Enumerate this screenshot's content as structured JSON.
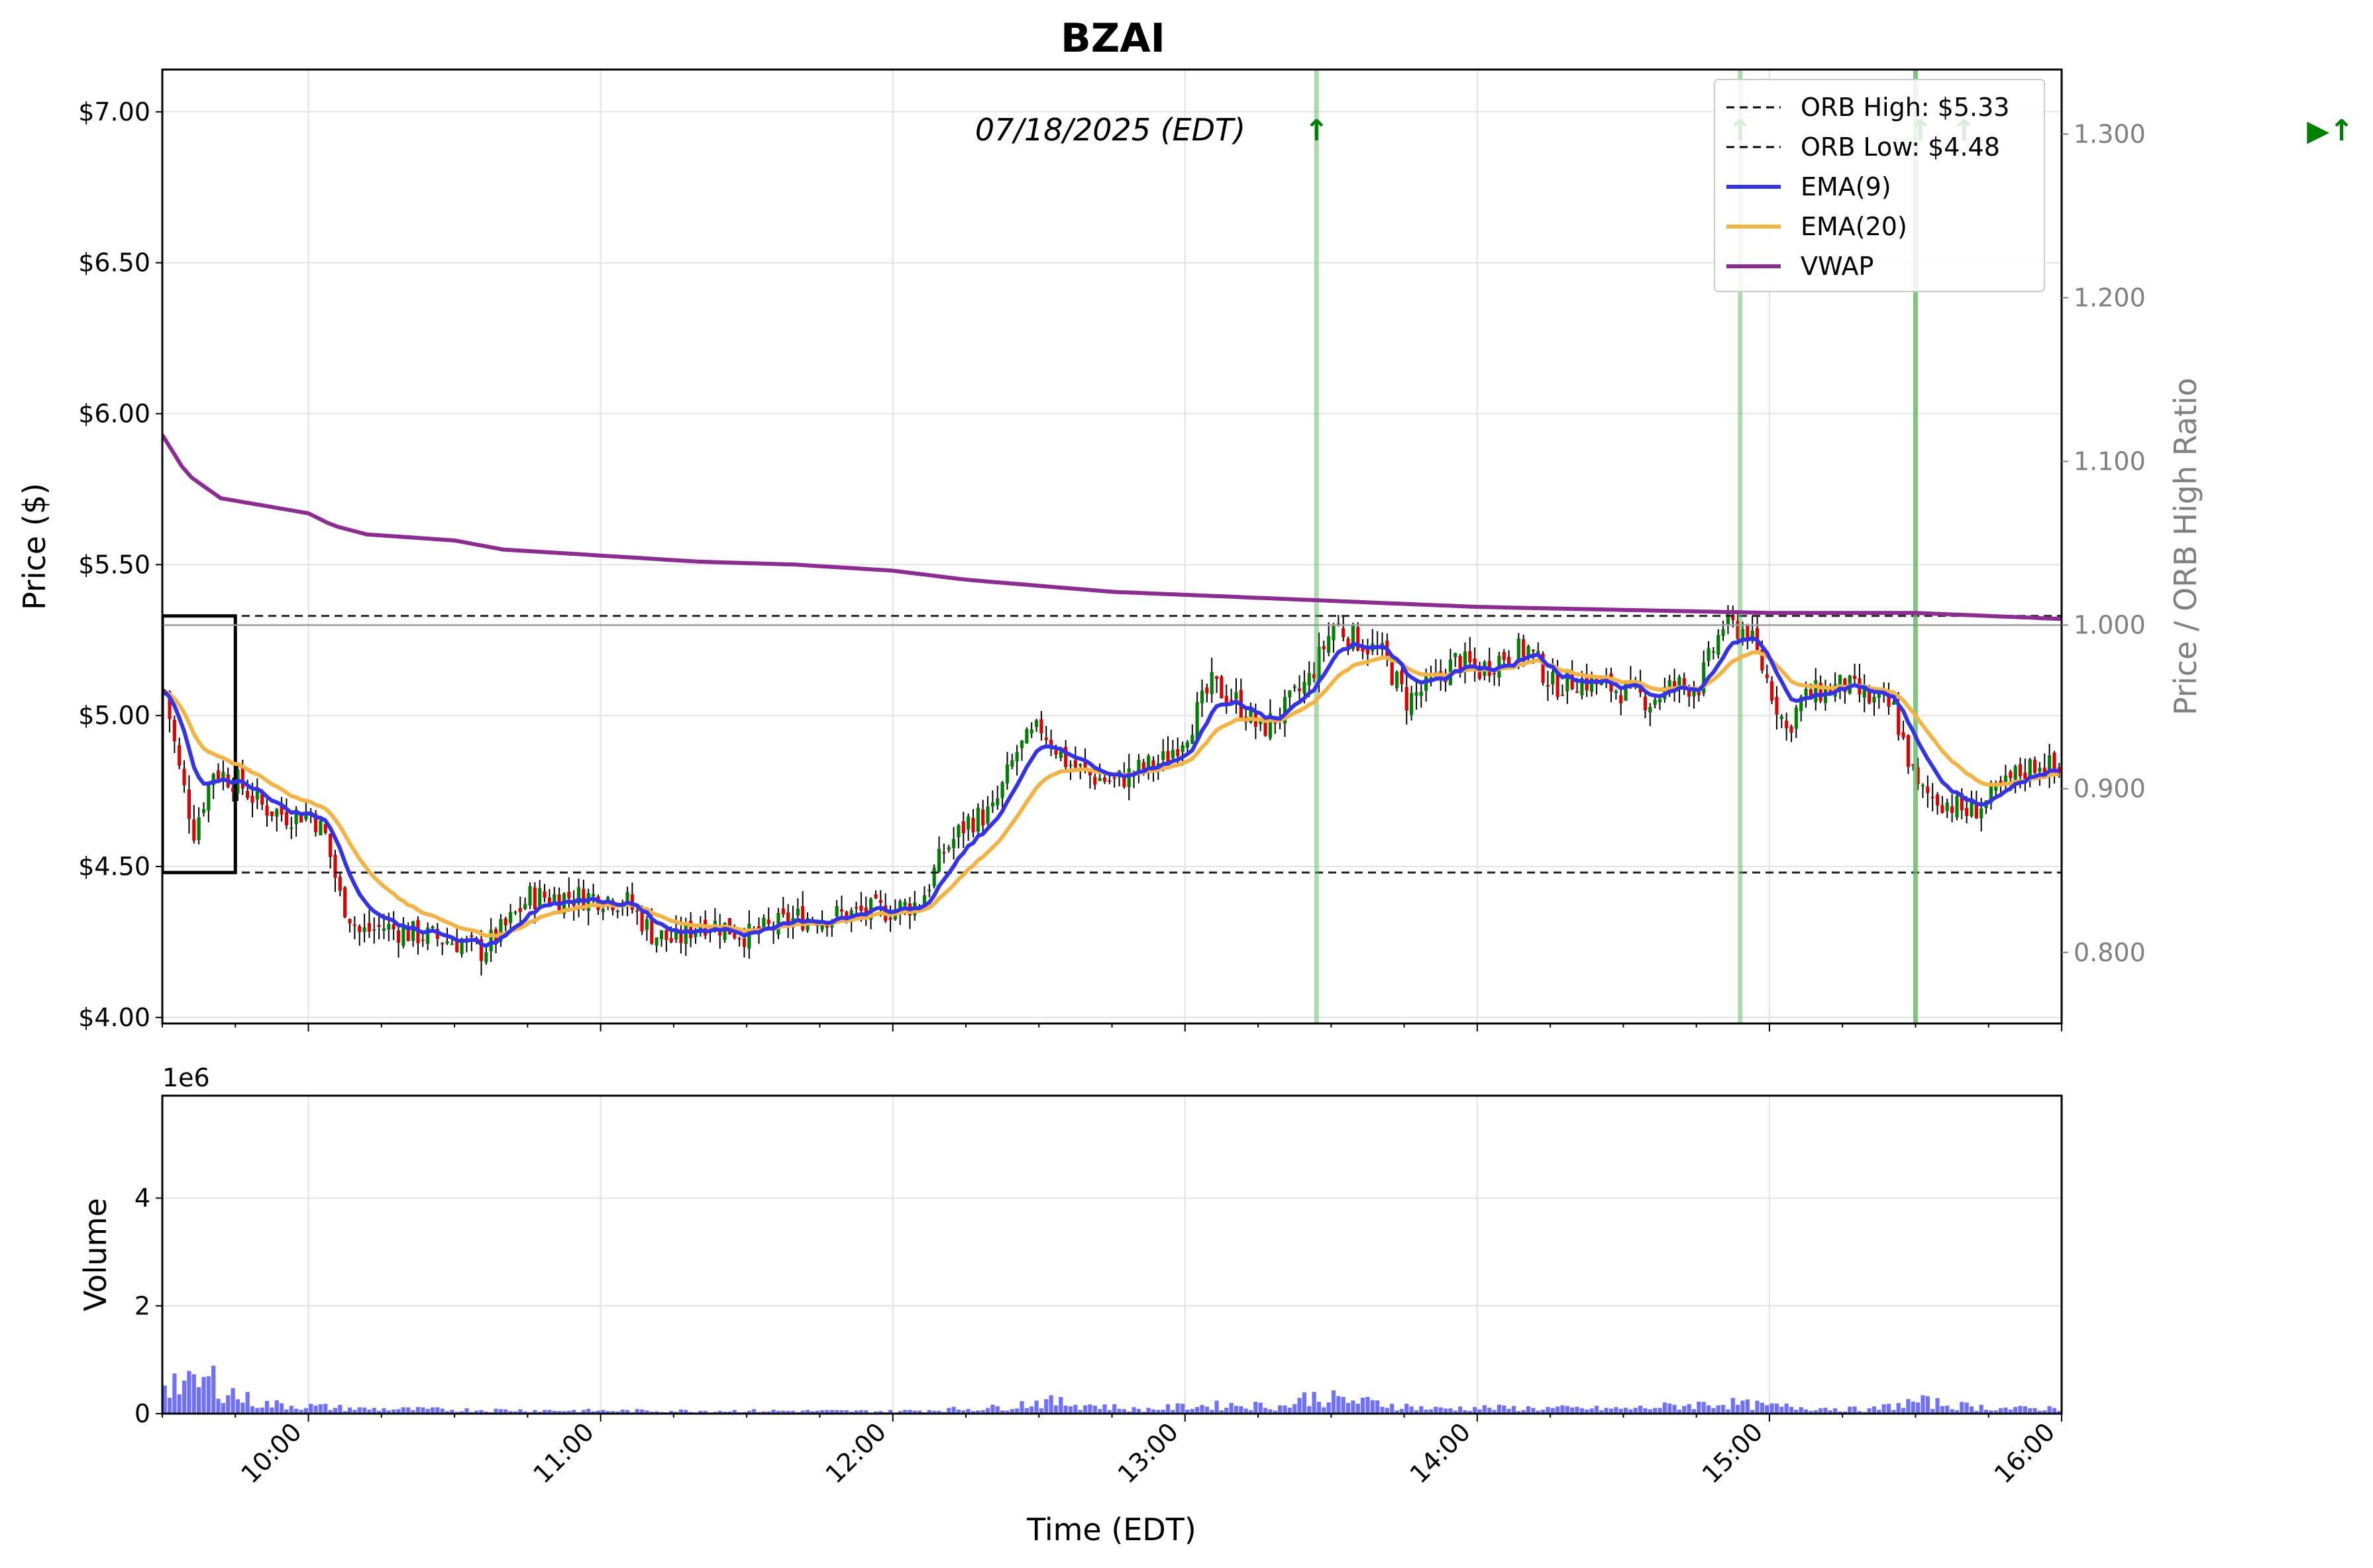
{
  "chart_data": [
    {
      "type": "line",
      "title": "BZAI",
      "annotation": "07/18/2025 (EDT)",
      "ylabel": "Price ($)",
      "ylabel_right": "Price / ORB High Ratio",
      "ylim": [
        3.98,
        7.14
      ],
      "ylim_right": [
        0.7566,
        1.3394
      ],
      "yticks": [
        "$4.00",
        "$4.50",
        "$5.00",
        "$5.50",
        "$6.00",
        "$6.50",
        "$7.00"
      ],
      "yticks_right": [
        "0.800",
        "0.900",
        "1.000",
        "1.100",
        "1.200",
        "1.300"
      ],
      "xticks": [
        "10:00",
        "11:00",
        "12:00",
        "13:00",
        "14:00",
        "15:00",
        "16:00"
      ],
      "x_range": [
        "09:30",
        "16:00"
      ],
      "grid": true,
      "legend_position": "top-right",
      "legend": [
        {
          "label": "ORB High: $5.33",
          "color": "#000000",
          "style": "dashed"
        },
        {
          "label": "ORB Low: $4.48",
          "color": "#000000",
          "style": "dashed"
        },
        {
          "label": "EMA(9)",
          "color": "#3333ee",
          "style": "solid"
        },
        {
          "label": "EMA(20)",
          "color": "#f5b342",
          "style": "solid"
        },
        {
          "label": "VWAP",
          "color": "#8e2a93",
          "style": "solid"
        }
      ],
      "orb": {
        "high": 5.33,
        "low": 4.48,
        "start": "09:30",
        "end": "09:45"
      },
      "signal_lines": [
        "13:27",
        "14:54",
        "15:30"
      ],
      "signal_arrows": [
        "13:27",
        "14:54",
        "15:31",
        "15:40"
      ],
      "end_marker": "▶↑",
      "arrow_glyph": "↑",
      "ohlc_anchors": [
        [
          "09:30",
          5.08
        ],
        [
          "09:33",
          4.82
        ],
        [
          "09:36",
          4.62
        ],
        [
          "09:40",
          4.82
        ],
        [
          "09:45",
          4.78
        ],
        [
          "09:50",
          4.7
        ],
        [
          "09:55",
          4.67
        ],
        [
          "10:00",
          4.68
        ],
        [
          "10:03",
          4.6
        ],
        [
          "10:06",
          4.4
        ],
        [
          "10:10",
          4.28
        ],
        [
          "10:15",
          4.3
        ],
        [
          "10:20",
          4.28
        ],
        [
          "10:30",
          4.25
        ],
        [
          "10:35",
          4.22
        ],
        [
          "10:40",
          4.3
        ],
        [
          "10:45",
          4.4
        ],
        [
          "10:50",
          4.4
        ],
        [
          "11:00",
          4.4
        ],
        [
          "11:05",
          4.38
        ],
        [
          "11:10",
          4.28
        ],
        [
          "11:15",
          4.25
        ],
        [
          "11:20",
          4.32
        ],
        [
          "11:25",
          4.3
        ],
        [
          "11:30",
          4.27
        ],
        [
          "11:40",
          4.33
        ],
        [
          "11:50",
          4.34
        ],
        [
          "12:00",
          4.36
        ],
        [
          "12:05",
          4.38
        ],
        [
          "12:10",
          4.55
        ],
        [
          "12:15",
          4.65
        ],
        [
          "12:20",
          4.68
        ],
        [
          "12:25",
          4.88
        ],
        [
          "12:30",
          4.96
        ],
        [
          "12:35",
          4.85
        ],
        [
          "12:40",
          4.8
        ],
        [
          "12:45",
          4.78
        ],
        [
          "12:50",
          4.82
        ],
        [
          "12:55",
          4.85
        ],
        [
          "13:00",
          4.95
        ],
        [
          "13:05",
          5.1
        ],
        [
          "13:10",
          5.05
        ],
        [
          "13:15",
          4.95
        ],
        [
          "13:20",
          5.02
        ],
        [
          "13:25",
          5.12
        ],
        [
          "13:30",
          5.3
        ],
        [
          "13:35",
          5.25
        ],
        [
          "13:40",
          5.2
        ],
        [
          "13:45",
          5.05
        ],
        [
          "13:50",
          5.1
        ],
        [
          "13:55",
          5.18
        ],
        [
          "14:00",
          5.15
        ],
        [
          "14:05",
          5.2
        ],
        [
          "14:10",
          5.22
        ],
        [
          "14:15",
          5.1
        ],
        [
          "14:20",
          5.12
        ],
        [
          "14:25",
          5.1
        ],
        [
          "14:30",
          5.08
        ],
        [
          "14:35",
          5.05
        ],
        [
          "14:40",
          5.1
        ],
        [
          "14:45",
          5.1
        ],
        [
          "14:50",
          5.3
        ],
        [
          "14:55",
          5.28
        ],
        [
          "15:00",
          5.08
        ],
        [
          "15:03",
          4.95
        ],
        [
          "15:06",
          5.05
        ],
        [
          "15:10",
          5.08
        ],
        [
          "15:15",
          5.1
        ],
        [
          "15:20",
          5.05
        ],
        [
          "15:25",
          5.02
        ],
        [
          "15:30",
          4.75
        ],
        [
          "15:35",
          4.72
        ],
        [
          "15:40",
          4.68
        ],
        [
          "15:45",
          4.72
        ],
        [
          "15:50",
          4.8
        ],
        [
          "15:55",
          4.85
        ],
        [
          "16:00",
          4.8
        ]
      ],
      "vwap_anchors": [
        [
          "09:30",
          5.93
        ],
        [
          "09:35",
          5.8
        ],
        [
          "09:42",
          5.72
        ],
        [
          "10:00",
          5.67
        ],
        [
          "10:05",
          5.63
        ],
        [
          "10:12",
          5.6
        ],
        [
          "10:30",
          5.58
        ],
        [
          "10:40",
          5.55
        ],
        [
          "11:00",
          5.53
        ],
        [
          "11:20",
          5.51
        ],
        [
          "11:40",
          5.5
        ],
        [
          "12:00",
          5.48
        ],
        [
          "12:15",
          5.45
        ],
        [
          "12:30",
          5.43
        ],
        [
          "12:45",
          5.41
        ],
        [
          "13:00",
          5.4
        ],
        [
          "13:30",
          5.38
        ],
        [
          "14:00",
          5.36
        ],
        [
          "14:30",
          5.35
        ],
        [
          "15:00",
          5.34
        ],
        [
          "15:30",
          5.34
        ],
        [
          "16:00",
          5.32
        ]
      ]
    },
    {
      "type": "bar",
      "ylabel": "Volume",
      "offset_label": "1e6",
      "ylim": [
        0,
        5900000
      ],
      "yticks": [
        "0",
        "2",
        "4"
      ],
      "bar_color": "#4040ff",
      "volume_anchors": [
        [
          "09:30",
          750000
        ],
        [
          "09:35",
          550000
        ],
        [
          "09:40",
          700000
        ],
        [
          "09:45",
          350000
        ],
        [
          "09:50",
          200000
        ],
        [
          "10:00",
          150000
        ],
        [
          "10:10",
          100000
        ],
        [
          "10:30",
          80000
        ],
        [
          "11:00",
          60000
        ],
        [
          "11:30",
          60000
        ],
        [
          "12:00",
          50000
        ],
        [
          "12:20",
          120000
        ],
        [
          "12:30",
          250000
        ],
        [
          "12:40",
          180000
        ],
        [
          "12:50",
          80000
        ],
        [
          "13:00",
          150000
        ],
        [
          "13:10",
          180000
        ],
        [
          "13:20",
          150000
        ],
        [
          "13:25",
          350000
        ],
        [
          "13:30",
          300000
        ],
        [
          "13:40",
          200000
        ],
        [
          "13:50",
          100000
        ],
        [
          "14:00",
          120000
        ],
        [
          "14:30",
          100000
        ],
        [
          "14:50",
          220000
        ],
        [
          "15:00",
          150000
        ],
        [
          "15:10",
          120000
        ],
        [
          "15:20",
          80000
        ],
        [
          "15:30",
          250000
        ],
        [
          "15:40",
          150000
        ],
        [
          "15:50",
          100000
        ],
        [
          "16:00",
          120000
        ]
      ]
    }
  ]
}
